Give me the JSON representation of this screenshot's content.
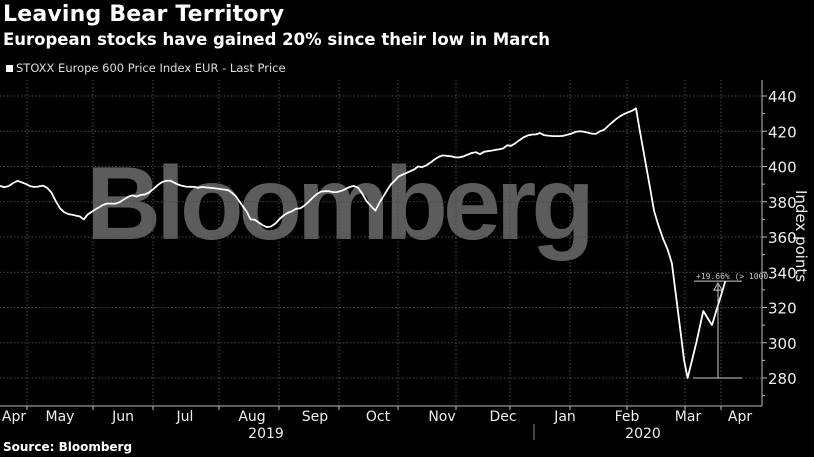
{
  "header": {
    "title": "Leaving Bear Territory",
    "subtitle": "European stocks have gained 20% since their low in March"
  },
  "legend": {
    "label": "STOXX Europe 600 Price Index EUR - Last Price"
  },
  "watermark": "Bloomberg",
  "annotation": "+19.66% (> 1000",
  "source": "Source: Bloomberg",
  "colors": {
    "background": "#000000",
    "line": "#ffffff",
    "grid": "#555555",
    "watermark": "#5c5c5c"
  },
  "chart_data": {
    "type": "line",
    "title": "Leaving Bear Territory",
    "subtitle": "European stocks have gained 20% since their low in March",
    "xlabel": "",
    "ylabel": "Index points",
    "ylim": [
      270,
      445
    ],
    "yticks": [
      280,
      300,
      320,
      340,
      360,
      380,
      400,
      420,
      440
    ],
    "xticks": [
      "Apr",
      "May",
      "Jun",
      "Jul",
      "Aug",
      "Sep",
      "Oct",
      "Nov",
      "Dec",
      "Jan",
      "Feb",
      "Mar",
      "Apr"
    ],
    "year_labels": [
      "2019",
      "2020"
    ],
    "grid": true,
    "legend_position": "top-left",
    "series": [
      {
        "name": "STOXX Europe 600 Price Index EUR - Last Price",
        "x": [
          "2019-04-01",
          "2019-04-15",
          "2019-05-01",
          "2019-05-10",
          "2019-05-20",
          "2019-06-01",
          "2019-06-15",
          "2019-07-01",
          "2019-07-15",
          "2019-08-01",
          "2019-08-10",
          "2019-08-20",
          "2019-09-01",
          "2019-09-15",
          "2019-10-01",
          "2019-10-10",
          "2019-10-20",
          "2019-11-01",
          "2019-11-15",
          "2019-12-01",
          "2019-12-15",
          "2020-01-01",
          "2020-01-15",
          "2020-02-01",
          "2020-02-19",
          "2020-02-28",
          "2020-03-09",
          "2020-03-16",
          "2020-03-18",
          "2020-03-23",
          "2020-03-27",
          "2020-04-01",
          "2020-04-09"
        ],
        "values": [
          389,
          391,
          388,
          374,
          370,
          379,
          383,
          392,
          388,
          385,
          370,
          366,
          376,
          386,
          388,
          375,
          392,
          400,
          406,
          407,
          412,
          419,
          418,
          420,
          433,
          375,
          345,
          290,
          280,
          300,
          318,
          310,
          335
        ]
      }
    ],
    "annotation": {
      "text": "+19.66% (> 1000",
      "from": 280,
      "to": 335
    }
  }
}
